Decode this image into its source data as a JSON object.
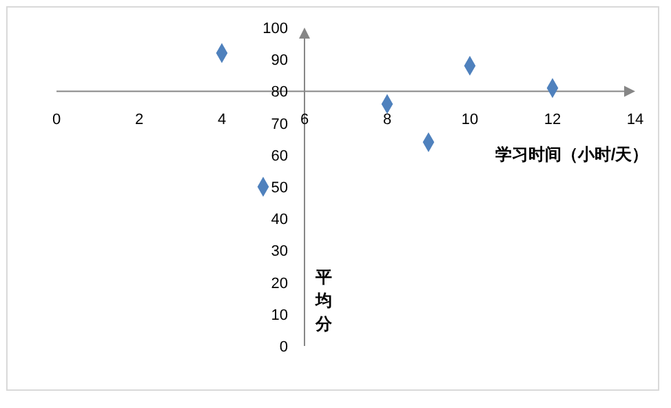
{
  "chart_data": {
    "type": "scatter",
    "xlabel": "学习时间（小时/天）",
    "ylabel": "平均分",
    "series": [
      {
        "color": "#4f81bd",
        "x": [
          4,
          5,
          8,
          9,
          10,
          12
        ],
        "values": [
          92,
          50,
          76,
          64,
          88,
          81
        ]
      }
    ],
    "xlim": [
      0,
      14
    ],
    "xticks": [
      0,
      2,
      4,
      6,
      8,
      10,
      12,
      14
    ],
    "ylim": [
      0,
      100
    ],
    "yticks": [
      0,
      10,
      20,
      30,
      40,
      50,
      60,
      70,
      80,
      90,
      100
    ],
    "marker": "diamond",
    "grid": false
  }
}
